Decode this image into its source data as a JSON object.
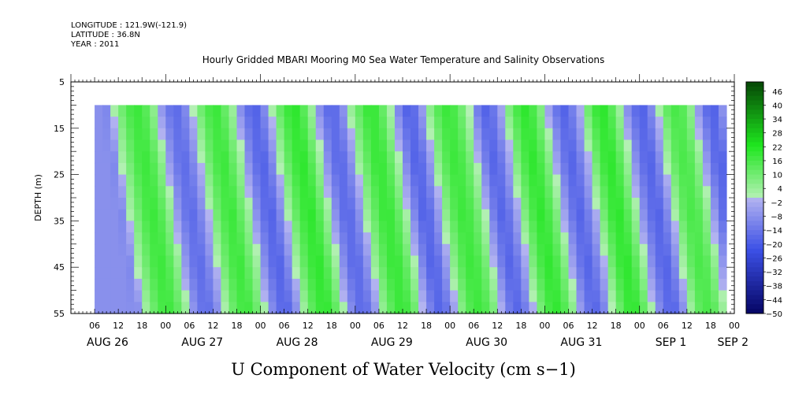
{
  "header": {
    "longitude": "LONGITUDE : 121.9W(-121.9)",
    "latitude": "LATITUDE : 36.8N",
    "year": "YEAR : 2011"
  },
  "chart_data": {
    "type": "heatmap",
    "title": "Hourly Gridded MBARI Mooring M0 Sea Water Temperature and Salinity Observations",
    "xlabel": "U Component of Water Velocity (cm s−1)",
    "ylabel": "DEPTH (m)",
    "x_range_hours": [
      0,
      168
    ],
    "data_extent": {
      "x_start_hours": 6,
      "x_end_hours": 166,
      "depth_top": 10,
      "depth_bottom": 55
    },
    "ylim": [
      55,
      5
    ],
    "y_ticks": [
      5,
      15,
      25,
      35,
      45,
      55
    ],
    "hour_tick_labels": [
      "06",
      "12",
      "18",
      "00",
      "06",
      "12",
      "18",
      "00",
      "06",
      "12",
      "18",
      "00",
      "06",
      "12",
      "18",
      "00",
      "06",
      "12",
      "18",
      "00",
      "06",
      "12",
      "18",
      "00",
      "06",
      "12",
      "18",
      "00"
    ],
    "day_labels": [
      "AUG 26",
      "AUG 27",
      "AUG 28",
      "AUG 29",
      "AUG 30",
      "AUG 31",
      "SEP  1",
      "SEP  2"
    ],
    "colorbar": {
      "range": [
        -50,
        50
      ],
      "labels": [
        "46",
        "40",
        "34",
        "28",
        "22",
        "16",
        "10",
        "4",
        "−2",
        "−8",
        "−14",
        "−20",
        "−26",
        "−32",
        "−38",
        "−44",
        "−50"
      ]
    },
    "columns_hours": [
      6,
      8,
      10,
      12,
      14,
      16,
      18,
      20,
      22,
      24,
      26,
      28,
      30,
      32,
      34,
      36,
      38,
      40,
      42,
      44,
      46,
      48,
      50,
      52,
      54,
      56,
      58,
      60,
      62,
      64,
      66,
      68,
      70,
      72,
      74,
      76,
      78,
      80,
      82,
      84,
      86,
      88,
      90,
      92,
      94,
      96,
      98,
      100,
      102,
      104,
      106,
      108,
      110,
      112,
      114,
      116,
      118,
      120,
      122,
      124,
      126,
      128,
      130,
      132,
      134,
      136,
      138,
      140,
      142,
      144,
      146,
      148,
      150,
      152,
      154,
      156,
      158,
      160,
      162,
      164,
      166
    ],
    "surface_values": [
      -8,
      -10,
      2,
      10,
      16,
      18,
      14,
      6,
      -6,
      -14,
      -16,
      -10,
      0,
      10,
      16,
      18,
      12,
      4,
      -8,
      -16,
      -18,
      -10,
      2,
      12,
      18,
      20,
      14,
      4,
      -8,
      -16,
      -16,
      -8,
      4,
      12,
      18,
      18,
      12,
      2,
      -10,
      -18,
      -16,
      -6,
      6,
      14,
      18,
      16,
      10,
      0,
      -12,
      -18,
      -14,
      -4,
      8,
      16,
      20,
      16,
      8,
      -4,
      -14,
      -18,
      -12,
      -2,
      10,
      18,
      20,
      14,
      4,
      -8,
      -16,
      -18,
      -10,
      2,
      12,
      16,
      14,
      6,
      -6,
      -16,
      -18,
      -8,
      4
    ],
    "depth_phase_shift_hours_per_m": 0.18
  }
}
